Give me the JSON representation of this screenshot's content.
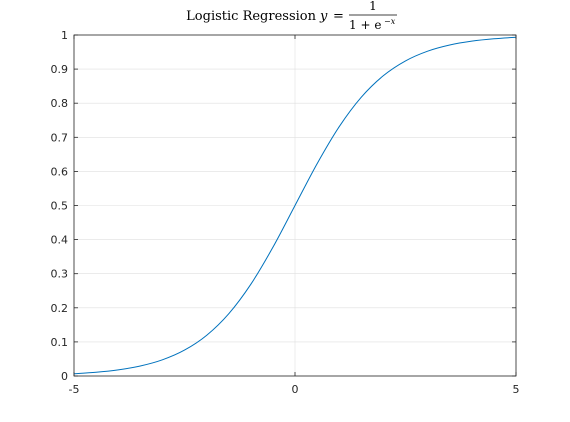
{
  "chart_data": {
    "type": "line",
    "title": {
      "prefix": "Logistic Regression",
      "var": "y",
      "equals": "=",
      "numerator": "1",
      "denominator_base": "1 + e",
      "denominator_exponent": "−x"
    },
    "xlabel": "",
    "ylabel": "",
    "xlim": [
      -5,
      5
    ],
    "ylim": [
      0,
      1
    ],
    "xticks": [
      -5,
      0,
      5
    ],
    "xtick_labels": [
      "-5",
      "0",
      "5"
    ],
    "yticks": [
      0,
      0.1,
      0.2,
      0.3,
      0.4,
      0.5,
      0.6,
      0.7,
      0.8,
      0.9,
      1
    ],
    "ytick_labels": [
      "0",
      "0.1",
      "0.2",
      "0.3",
      "0.4",
      "0.5",
      "0.6",
      "0.7",
      "0.8",
      "0.9",
      "1"
    ],
    "grid": true,
    "series": [
      {
        "color": "#0072bd",
        "x": [
          -5,
          -4.5,
          -4,
          -3.5,
          -3,
          -2.5,
          -2,
          -1.5,
          -1,
          -0.5,
          0,
          0.5,
          1,
          1.5,
          2,
          2.5,
          3,
          3.5,
          4,
          4.5,
          5
        ],
        "y": [
          0.0067,
          0.011,
          0.018,
          0.0293,
          0.0474,
          0.0759,
          0.1192,
          0.1824,
          0.2689,
          0.3775,
          0.5,
          0.6225,
          0.7311,
          0.8176,
          0.8808,
          0.9241,
          0.9526,
          0.9707,
          0.982,
          0.989,
          0.9933
        ]
      }
    ]
  }
}
